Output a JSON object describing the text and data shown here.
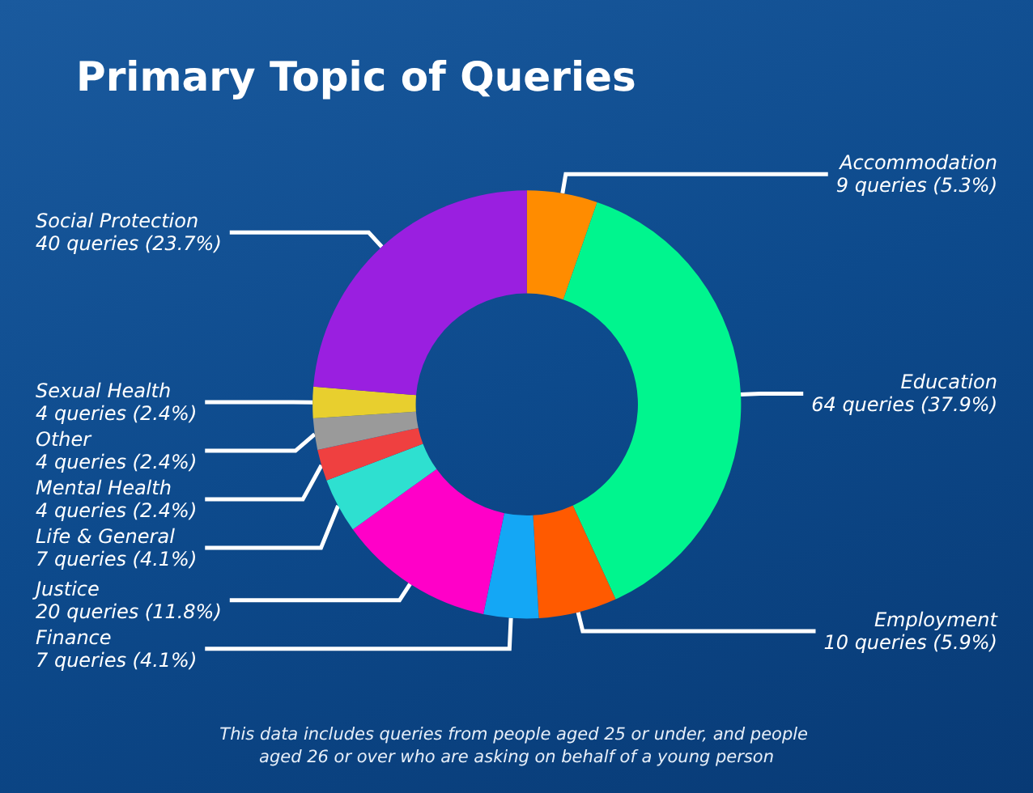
{
  "chart_data": {
    "type": "donut",
    "title": "Primary Topic of Queries",
    "categories": [
      "Accommodation",
      "Education",
      "Employment",
      "Finance",
      "Justice",
      "Life & General",
      "Mental Health",
      "Other",
      "Sexual Health",
      "Social Protection"
    ],
    "values": [
      9,
      64,
      10,
      7,
      20,
      7,
      4,
      4,
      4,
      40
    ],
    "value_labels": [
      "9 queries (5.3%)",
      "64 queries (37.9%)",
      "10 queries (5.9%)",
      "7 queries (4.1%)",
      "20 queries (11.8%)",
      "7 queries (4.1%)",
      "4 queries (2.4%)",
      "4 queries (2.4%)",
      "4 queries (2.4%)",
      "40 queries (23.7%)"
    ],
    "colors": [
      "#ff8c00",
      "#00f58e",
      "#ff5a00",
      "#14a7f5",
      "#ff00c8",
      "#2ee0d0",
      "#ef4040",
      "#9a9a9a",
      "#e8cf2e",
      "#9a1fe0"
    ],
    "annotations": [
      "This data includes queries from people aged 25 or under, and people aged 26 or over who are asking on behalf of a young person"
    ],
    "legend": false
  }
}
